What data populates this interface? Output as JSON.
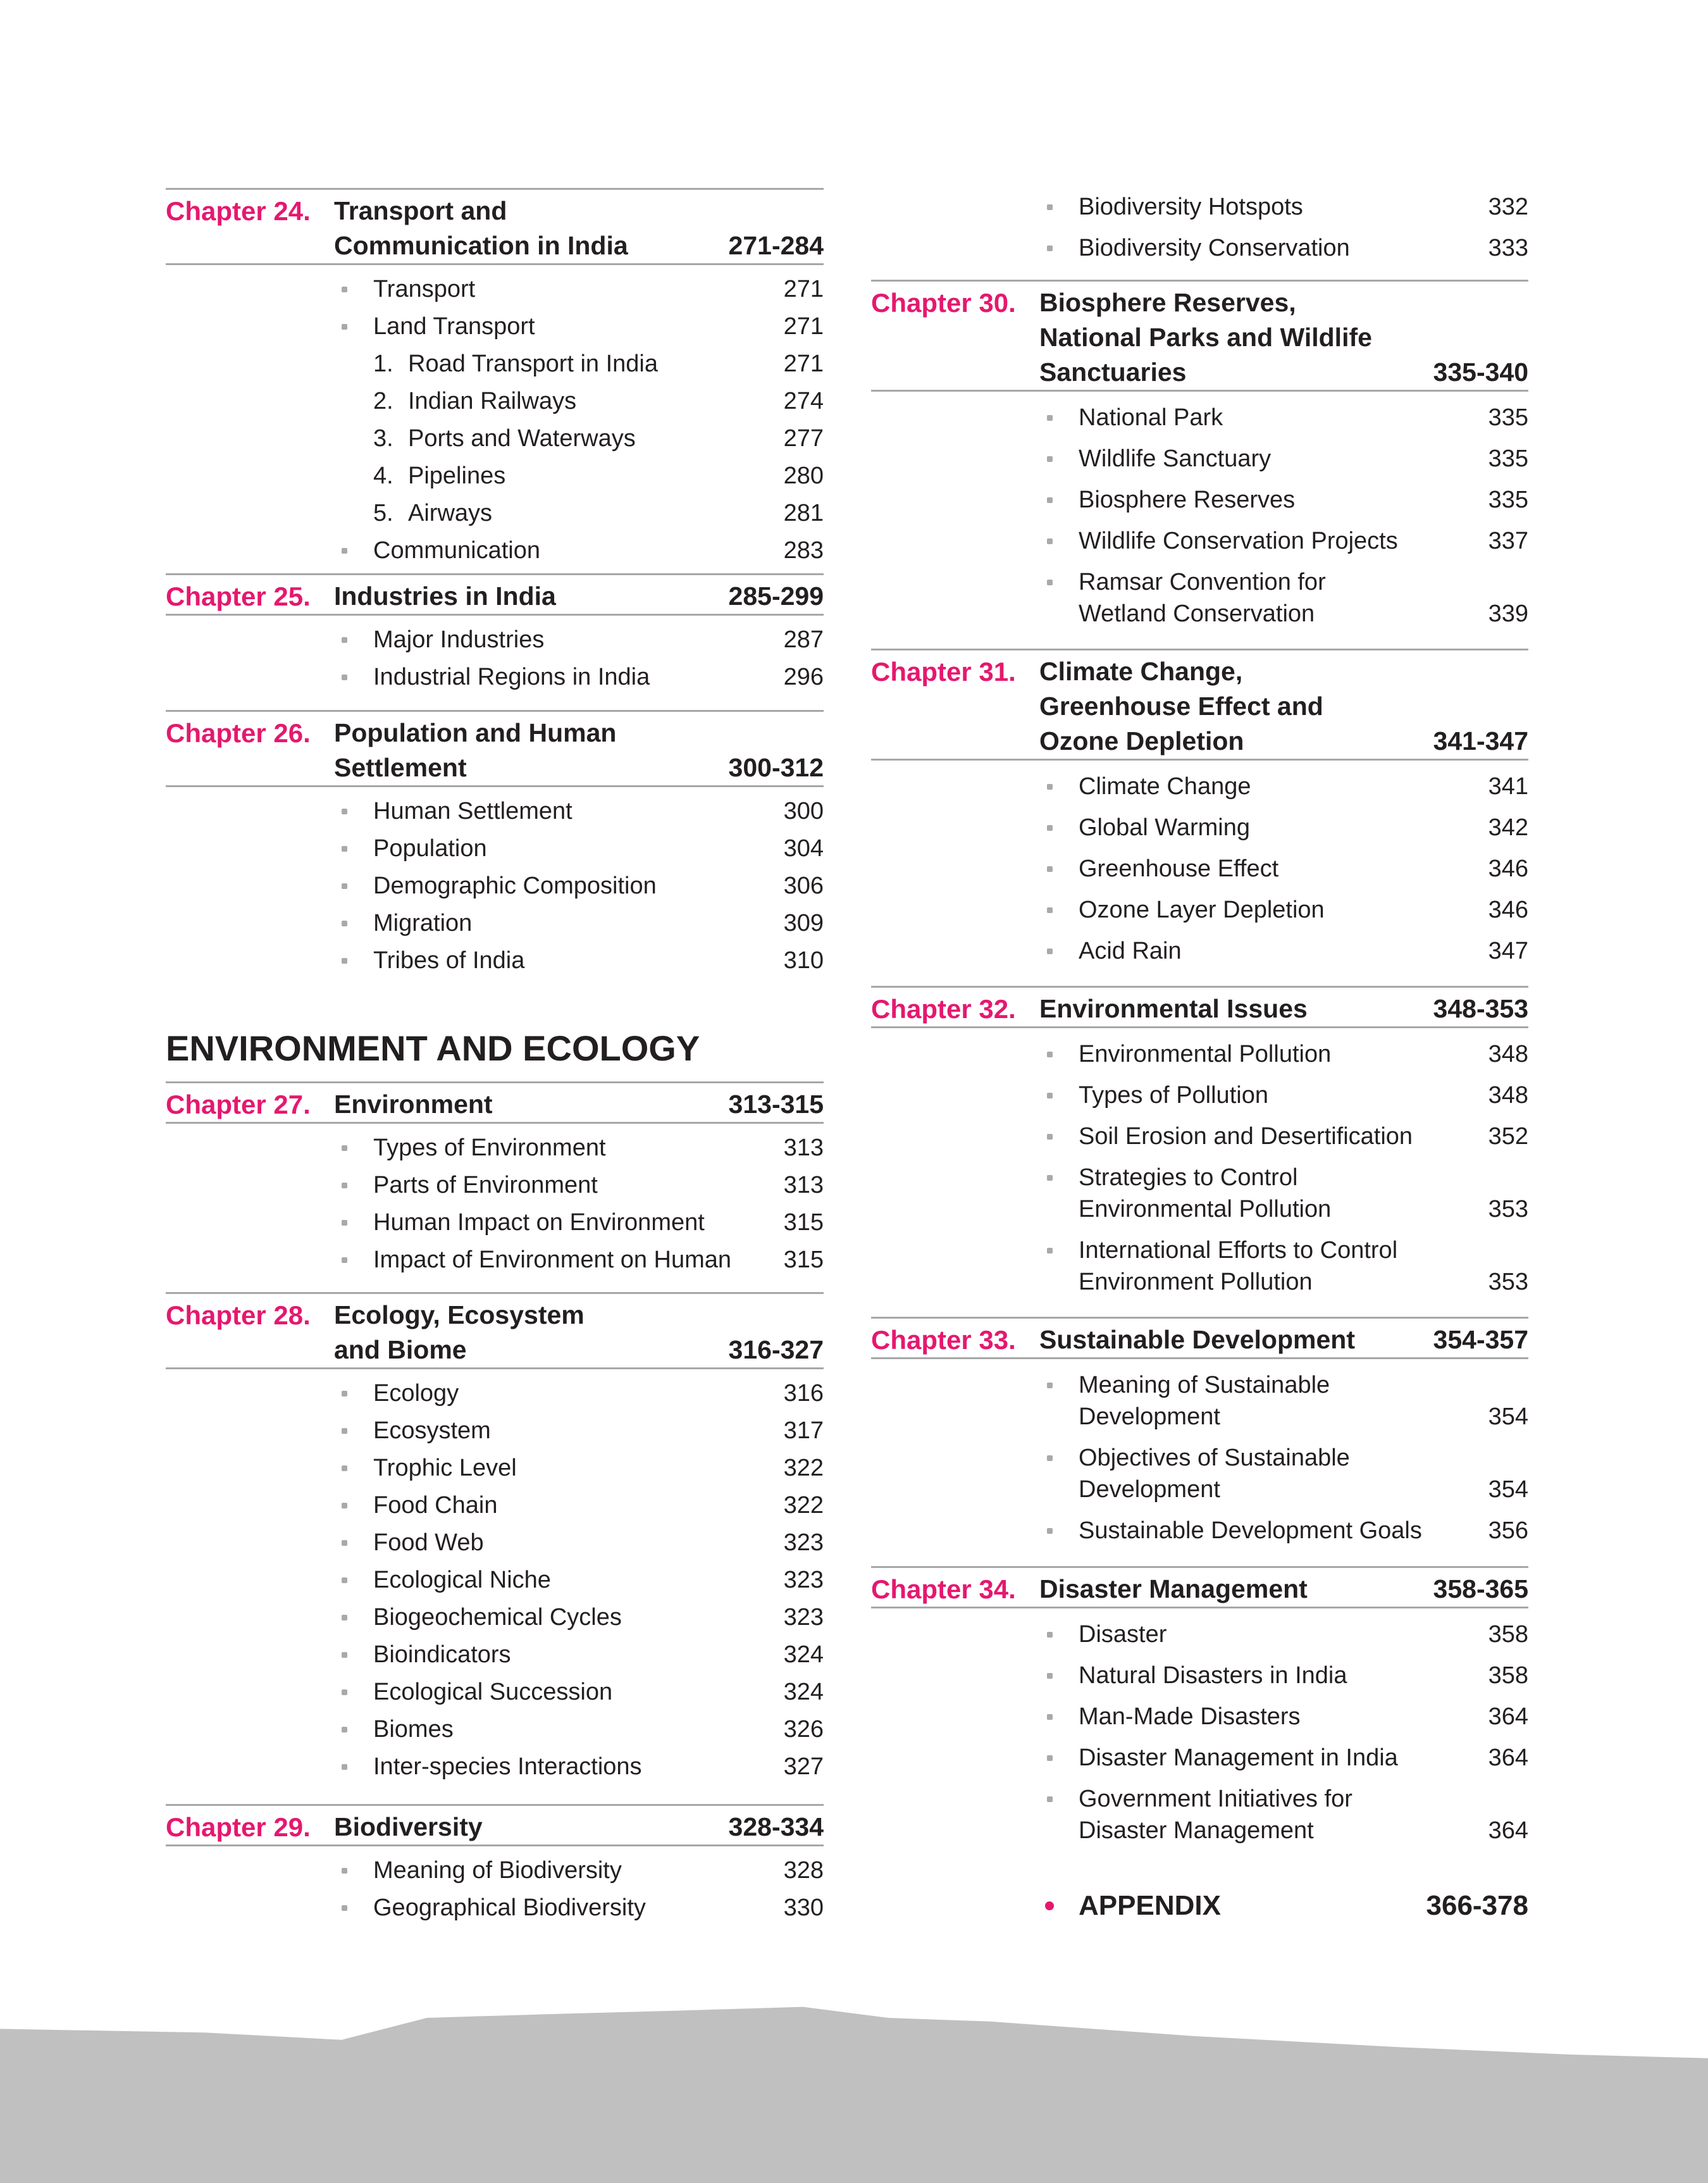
{
  "section_heading": "ENVIRONMENT AND ECOLOGY",
  "appendix": {
    "label": "APPENDIX",
    "pages": "366-378"
  },
  "colors": {
    "chapter": "#e5186f",
    "rule": "#a7a7a7",
    "bullet": "#a9a9a9",
    "footer": "#c0c0c0"
  },
  "left": [
    {
      "chapter": "Chapter 24.",
      "title": [
        "Transport and",
        "Communication in India"
      ],
      "pages": "271-284",
      "items": [
        {
          "lines": [
            "Transport"
          ],
          "page": "271"
        },
        {
          "lines": [
            "Land Transport"
          ],
          "page": "271"
        },
        {
          "num": "1.",
          "lines": [
            "Road Transport in India"
          ],
          "page": "271"
        },
        {
          "num": "2.",
          "lines": [
            "Indian Railways"
          ],
          "page": "274"
        },
        {
          "num": "3.",
          "lines": [
            "Ports and Waterways"
          ],
          "page": "277"
        },
        {
          "num": "4.",
          "lines": [
            "Pipelines"
          ],
          "page": "280"
        },
        {
          "num": "5.",
          "lines": [
            "Airways"
          ],
          "page": "281"
        },
        {
          "lines": [
            "Communication"
          ],
          "page": "283"
        }
      ]
    },
    {
      "chapter": "Chapter 25.",
      "title": [
        "Industries in India"
      ],
      "pages": "285-299",
      "items": [
        {
          "lines": [
            "Major Industries"
          ],
          "page": "287"
        },
        {
          "lines": [
            "Industrial Regions in India"
          ],
          "page": "296"
        }
      ]
    },
    {
      "chapter": "Chapter 26.",
      "title": [
        "Population and Human",
        "Settlement"
      ],
      "pages": "300-312",
      "items": [
        {
          "lines": [
            "Human Settlement"
          ],
          "page": "300"
        },
        {
          "lines": [
            "Population"
          ],
          "page": "304"
        },
        {
          "lines": [
            "Demographic Composition"
          ],
          "page": "306"
        },
        {
          "lines": [
            "Migration"
          ],
          "page": "309"
        },
        {
          "lines": [
            "Tribes of India"
          ],
          "page": "310"
        }
      ]
    },
    {
      "chapter": "Chapter 27.",
      "title": [
        "Environment"
      ],
      "pages": "313-315",
      "items": [
        {
          "lines": [
            "Types of Environment"
          ],
          "page": "313"
        },
        {
          "lines": [
            "Parts of Environment"
          ],
          "page": "313"
        },
        {
          "lines": [
            "Human Impact on Environment"
          ],
          "page": "315"
        },
        {
          "lines": [
            "Impact of Environment on Human"
          ],
          "page": "315"
        }
      ]
    },
    {
      "chapter": "Chapter 28.",
      "title": [
        "Ecology, Ecosystem",
        "and Biome"
      ],
      "pages": "316-327",
      "items": [
        {
          "lines": [
            "Ecology"
          ],
          "page": "316"
        },
        {
          "lines": [
            "Ecosystem"
          ],
          "page": "317"
        },
        {
          "lines": [
            "Trophic Level"
          ],
          "page": "322"
        },
        {
          "lines": [
            "Food Chain"
          ],
          "page": "322"
        },
        {
          "lines": [
            "Food Web"
          ],
          "page": "323"
        },
        {
          "lines": [
            "Ecological Niche"
          ],
          "page": "323"
        },
        {
          "lines": [
            "Biogeochemical Cycles"
          ],
          "page": "323"
        },
        {
          "lines": [
            "Bioindicators"
          ],
          "page": "324"
        },
        {
          "lines": [
            "Ecological Succession"
          ],
          "page": "324"
        },
        {
          "lines": [
            "Biomes"
          ],
          "page": "326"
        },
        {
          "lines": [
            "Inter-species Interactions"
          ],
          "page": "327"
        }
      ]
    },
    {
      "chapter": "Chapter 29.",
      "title": [
        "Biodiversity"
      ],
      "pages": "328-334",
      "items": [
        {
          "lines": [
            "Meaning of Biodiversity"
          ],
          "page": "328"
        },
        {
          "lines": [
            "Geographical Biodiversity"
          ],
          "page": "330"
        }
      ]
    }
  ],
  "right": [
    {
      "items": [
        {
          "lines": [
            "Biodiversity Hotspots"
          ],
          "page": "332"
        },
        {
          "lines": [
            "Biodiversity Conservation"
          ],
          "page": "333"
        }
      ]
    },
    {
      "chapter": "Chapter 30.",
      "title": [
        "Biosphere Reserves,",
        "National Parks and Wildlife",
        "Sanctuaries"
      ],
      "pages": "335-340",
      "items": [
        {
          "lines": [
            "National Park"
          ],
          "page": "335"
        },
        {
          "lines": [
            "Wildlife Sanctuary"
          ],
          "page": "335"
        },
        {
          "lines": [
            "Biosphere Reserves"
          ],
          "page": "335"
        },
        {
          "lines": [
            "Wildlife Conservation Projects"
          ],
          "page": "337"
        },
        {
          "lines": [
            "Ramsar Convention for",
            "Wetland Conservation"
          ],
          "page": "339"
        }
      ]
    },
    {
      "chapter": "Chapter 31.",
      "title": [
        "Climate Change,",
        "Greenhouse Effect and",
        "Ozone Depletion"
      ],
      "pages": "341-347",
      "items": [
        {
          "lines": [
            "Climate Change"
          ],
          "page": "341"
        },
        {
          "lines": [
            "Global Warming"
          ],
          "page": "342"
        },
        {
          "lines": [
            "Greenhouse Effect"
          ],
          "page": "346"
        },
        {
          "lines": [
            "Ozone Layer Depletion"
          ],
          "page": "346"
        },
        {
          "lines": [
            "Acid Rain"
          ],
          "page": "347"
        }
      ]
    },
    {
      "chapter": "Chapter 32.",
      "title": [
        "Environmental Issues"
      ],
      "pages": "348-353",
      "items": [
        {
          "lines": [
            "Environmental Pollution"
          ],
          "page": "348"
        },
        {
          "lines": [
            "Types of Pollution"
          ],
          "page": "348"
        },
        {
          "lines": [
            "Soil Erosion and Desertification"
          ],
          "page": "352"
        },
        {
          "lines": [
            "Strategies to Control",
            "Environmental Pollution"
          ],
          "page": "353"
        },
        {
          "lines": [
            "International Efforts to Control",
            "Environment Pollution"
          ],
          "page": "353"
        }
      ]
    },
    {
      "chapter": "Chapter 33.",
      "title": [
        "Sustainable Development"
      ],
      "pages": "354-357",
      "items": [
        {
          "lines": [
            "Meaning of Sustainable",
            "Development"
          ],
          "page": "354"
        },
        {
          "lines": [
            "Objectives of Sustainable",
            "Development"
          ],
          "page": "354"
        },
        {
          "lines": [
            "Sustainable Development Goals"
          ],
          "page": "356"
        }
      ]
    },
    {
      "chapter": "Chapter 34.",
      "title": [
        "Disaster Management"
      ],
      "pages": "358-365",
      "items": [
        {
          "lines": [
            "Disaster"
          ],
          "page": "358"
        },
        {
          "lines": [
            "Natural Disasters in India"
          ],
          "page": "358"
        },
        {
          "lines": [
            "Man-Made Disasters"
          ],
          "page": "364"
        },
        {
          "lines": [
            "Disaster Management in India"
          ],
          "page": "364"
        },
        {
          "lines": [
            "Government Initiatives for",
            "Disaster Management"
          ],
          "page": "364"
        }
      ]
    }
  ]
}
